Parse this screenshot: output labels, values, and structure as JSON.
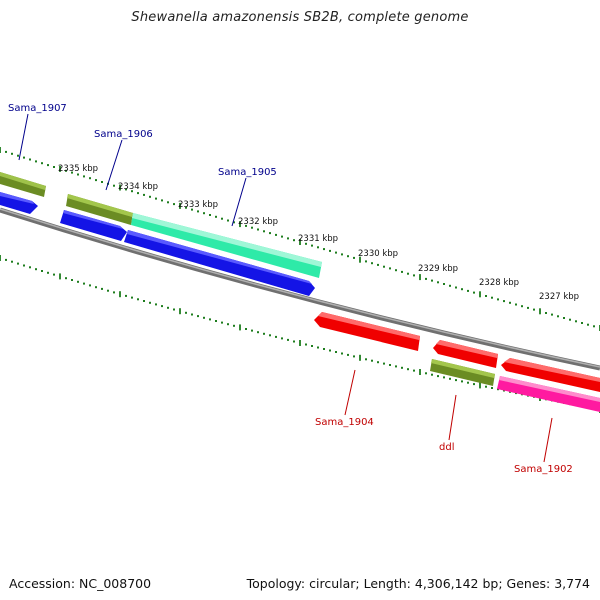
{
  "title": "Shewanella amazonensis SB2B, complete genome",
  "footer": {
    "accession": "Accession: NC_008700",
    "info": "Topology: circular; Length: 4,306,142 bp; Genes: 3,774"
  },
  "colors": {
    "backbone": "#8a8a8a",
    "ticks": "#1e7d1e",
    "forward_label": "#00008b",
    "reverse_label": "#c00000",
    "olive": "#6b8c23",
    "blue": "#1414e6",
    "aqua": "#2eeaa8",
    "red": "#f00000",
    "pink": "#ff1aa0"
  },
  "scale_labels": [
    "2335 kbp",
    "2334 kbp",
    "2333 kbp",
    "2332 kbp",
    "2331 kbp",
    "2330 kbp",
    "2329 kbp",
    "2328 kbp",
    "2327 kbp"
  ],
  "gene_labels": [
    "Sama_1907",
    "Sama_1906",
    "Sama_1905",
    "Sama_1904",
    "ddl",
    "Sama_1902"
  ]
}
